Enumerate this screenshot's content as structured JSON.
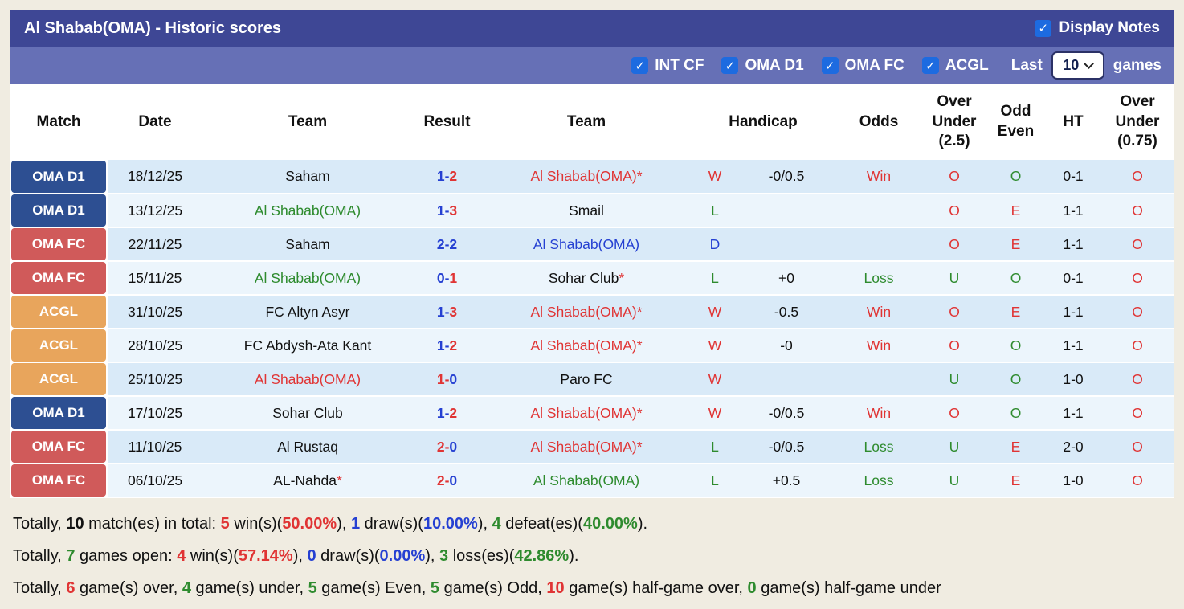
{
  "header": {
    "title": "Al Shabab(OMA) - Historic scores",
    "display_notes_label": "Display Notes"
  },
  "icons": {
    "check": "✓"
  },
  "filter_bar": {
    "leagues": [
      "INT CF",
      "OMA D1",
      "OMA FC",
      "ACGL"
    ],
    "last_label": "Last",
    "selected_count": "10",
    "games_label": "games"
  },
  "table": {
    "headers": [
      "Match",
      "Date",
      "Team",
      "Result",
      "Team",
      "Handicap",
      "Odds",
      "Over Under (2.5)",
      "Odd Even",
      "HT",
      "Over Under (0.75)"
    ],
    "rows": [
      {
        "league": "OMA D1",
        "date": "18/12/25",
        "home": {
          "name": "Saham",
          "color": "black",
          "star": false
        },
        "score": {
          "h": "1",
          "hc": "blue",
          "a": "2",
          "ac": "red"
        },
        "away": {
          "name": "Al Shabab(OMA)",
          "color": "red",
          "star": true
        },
        "wld": {
          "t": "W",
          "c": "red"
        },
        "handicap": "-0/0.5",
        "odds": {
          "t": "Win",
          "c": "red"
        },
        "ou25": {
          "t": "O",
          "c": "red"
        },
        "oe": {
          "t": "O",
          "c": "green"
        },
        "ht": "0-1",
        "ou075": {
          "t": "O",
          "c": "red"
        }
      },
      {
        "league": "OMA D1",
        "date": "13/12/25",
        "home": {
          "name": "Al Shabab(OMA)",
          "color": "green",
          "star": false
        },
        "score": {
          "h": "1",
          "hc": "blue",
          "a": "3",
          "ac": "red"
        },
        "away": {
          "name": "Smail",
          "color": "black",
          "star": false
        },
        "wld": {
          "t": "L",
          "c": "green"
        },
        "handicap": "",
        "odds": null,
        "ou25": {
          "t": "O",
          "c": "red"
        },
        "oe": {
          "t": "E",
          "c": "red"
        },
        "ht": "1-1",
        "ou075": {
          "t": "O",
          "c": "red"
        }
      },
      {
        "league": "OMA FC",
        "date": "22/11/25",
        "home": {
          "name": "Saham",
          "color": "black",
          "star": false
        },
        "score": {
          "h": "2",
          "hc": "blue",
          "a": "2",
          "ac": "blue"
        },
        "away": {
          "name": "Al Shabab(OMA)",
          "color": "blue",
          "star": false
        },
        "wld": {
          "t": "D",
          "c": "blue"
        },
        "handicap": "",
        "odds": null,
        "ou25": {
          "t": "O",
          "c": "red"
        },
        "oe": {
          "t": "E",
          "c": "red"
        },
        "ht": "1-1",
        "ou075": {
          "t": "O",
          "c": "red"
        }
      },
      {
        "league": "OMA FC",
        "date": "15/11/25",
        "home": {
          "name": "Al Shabab(OMA)",
          "color": "green",
          "star": false
        },
        "score": {
          "h": "0",
          "hc": "blue",
          "a": "1",
          "ac": "red"
        },
        "away": {
          "name": "Sohar Club",
          "color": "black",
          "star": true
        },
        "wld": {
          "t": "L",
          "c": "green"
        },
        "handicap": "+0",
        "odds": {
          "t": "Loss",
          "c": "green"
        },
        "ou25": {
          "t": "U",
          "c": "green"
        },
        "oe": {
          "t": "O",
          "c": "green"
        },
        "ht": "0-1",
        "ou075": {
          "t": "O",
          "c": "red"
        }
      },
      {
        "league": "ACGL",
        "date": "31/10/25",
        "home": {
          "name": "FC Altyn Asyr",
          "color": "black",
          "star": false
        },
        "score": {
          "h": "1",
          "hc": "blue",
          "a": "3",
          "ac": "red"
        },
        "away": {
          "name": "Al Shabab(OMA)",
          "color": "red",
          "star": true
        },
        "wld": {
          "t": "W",
          "c": "red"
        },
        "handicap": "-0.5",
        "odds": {
          "t": "Win",
          "c": "red"
        },
        "ou25": {
          "t": "O",
          "c": "red"
        },
        "oe": {
          "t": "E",
          "c": "red"
        },
        "ht": "1-1",
        "ou075": {
          "t": "O",
          "c": "red"
        }
      },
      {
        "league": "ACGL",
        "date": "28/10/25",
        "home": {
          "name": "FC Abdysh-Ata Kant",
          "color": "black",
          "star": false
        },
        "score": {
          "h": "1",
          "hc": "blue",
          "a": "2",
          "ac": "red"
        },
        "away": {
          "name": "Al Shabab(OMA)",
          "color": "red",
          "star": true
        },
        "wld": {
          "t": "W",
          "c": "red"
        },
        "handicap": "-0",
        "odds": {
          "t": "Win",
          "c": "red"
        },
        "ou25": {
          "t": "O",
          "c": "red"
        },
        "oe": {
          "t": "O",
          "c": "green"
        },
        "ht": "1-1",
        "ou075": {
          "t": "O",
          "c": "red"
        }
      },
      {
        "league": "ACGL",
        "date": "25/10/25",
        "home": {
          "name": "Al Shabab(OMA)",
          "color": "red",
          "star": false
        },
        "score": {
          "h": "1",
          "hc": "red",
          "a": "0",
          "ac": "blue"
        },
        "away": {
          "name": "Paro FC",
          "color": "black",
          "star": false
        },
        "wld": {
          "t": "W",
          "c": "red"
        },
        "handicap": "",
        "odds": null,
        "ou25": {
          "t": "U",
          "c": "green"
        },
        "oe": {
          "t": "O",
          "c": "green"
        },
        "ht": "1-0",
        "ou075": {
          "t": "O",
          "c": "red"
        }
      },
      {
        "league": "OMA D1",
        "date": "17/10/25",
        "home": {
          "name": "Sohar Club",
          "color": "black",
          "star": false
        },
        "score": {
          "h": "1",
          "hc": "blue",
          "a": "2",
          "ac": "red"
        },
        "away": {
          "name": "Al Shabab(OMA)",
          "color": "red",
          "star": true
        },
        "wld": {
          "t": "W",
          "c": "red"
        },
        "handicap": "-0/0.5",
        "odds": {
          "t": "Win",
          "c": "red"
        },
        "ou25": {
          "t": "O",
          "c": "red"
        },
        "oe": {
          "t": "O",
          "c": "green"
        },
        "ht": "1-1",
        "ou075": {
          "t": "O",
          "c": "red"
        }
      },
      {
        "league": "OMA FC",
        "date": "11/10/25",
        "home": {
          "name": "Al Rustaq",
          "color": "black",
          "star": false
        },
        "score": {
          "h": "2",
          "hc": "red",
          "a": "0",
          "ac": "blue"
        },
        "away": {
          "name": "Al Shabab(OMA)",
          "color": "red",
          "star": true
        },
        "wld": {
          "t": "L",
          "c": "green"
        },
        "handicap": "-0/0.5",
        "odds": {
          "t": "Loss",
          "c": "green"
        },
        "ou25": {
          "t": "U",
          "c": "green"
        },
        "oe": {
          "t": "E",
          "c": "red"
        },
        "ht": "2-0",
        "ou075": {
          "t": "O",
          "c": "red"
        }
      },
      {
        "league": "OMA FC",
        "date": "06/10/25",
        "home": {
          "name": "AL-Nahda",
          "color": "black",
          "star": true
        },
        "score": {
          "h": "2",
          "hc": "red",
          "a": "0",
          "ac": "blue"
        },
        "away": {
          "name": "Al Shabab(OMA)",
          "color": "green",
          "star": false
        },
        "wld": {
          "t": "L",
          "c": "green"
        },
        "handicap": "+0.5",
        "odds": {
          "t": "Loss",
          "c": "green"
        },
        "ou25": {
          "t": "U",
          "c": "green"
        },
        "oe": {
          "t": "E",
          "c": "red"
        },
        "ht": "1-0",
        "ou075": {
          "t": "O",
          "c": "red"
        }
      }
    ]
  },
  "summary": [
    [
      {
        "t": "Totally, ",
        "c": "black"
      },
      {
        "t": "10",
        "c": "black",
        "b": true
      },
      {
        "t": " match(es) in total: ",
        "c": "black"
      },
      {
        "t": "5",
        "c": "red",
        "b": true
      },
      {
        "t": " win(s)(",
        "c": "black"
      },
      {
        "t": "50.00%",
        "c": "red",
        "b": true
      },
      {
        "t": "), ",
        "c": "black"
      },
      {
        "t": "1",
        "c": "blue",
        "b": true
      },
      {
        "t": " draw(s)(",
        "c": "black"
      },
      {
        "t": "10.00%",
        "c": "blue",
        "b": true
      },
      {
        "t": "), ",
        "c": "black"
      },
      {
        "t": "4",
        "c": "green",
        "b": true
      },
      {
        "t": " defeat(es)(",
        "c": "black"
      },
      {
        "t": "40.00%",
        "c": "green",
        "b": true
      },
      {
        "t": ").",
        "c": "black"
      }
    ],
    [
      {
        "t": "Totally, ",
        "c": "black"
      },
      {
        "t": "7",
        "c": "green",
        "b": true
      },
      {
        "t": " games open: ",
        "c": "black"
      },
      {
        "t": "4",
        "c": "red",
        "b": true
      },
      {
        "t": " win(s)(",
        "c": "black"
      },
      {
        "t": "57.14%",
        "c": "red",
        "b": true
      },
      {
        "t": "), ",
        "c": "black"
      },
      {
        "t": "0",
        "c": "blue",
        "b": true
      },
      {
        "t": " draw(s)(",
        "c": "black"
      },
      {
        "t": "0.00%",
        "c": "blue",
        "b": true
      },
      {
        "t": "), ",
        "c": "black"
      },
      {
        "t": "3",
        "c": "green",
        "b": true
      },
      {
        "t": " loss(es)(",
        "c": "black"
      },
      {
        "t": "42.86%",
        "c": "green",
        "b": true
      },
      {
        "t": ").",
        "c": "black"
      }
    ],
    [
      {
        "t": "Totally, ",
        "c": "black"
      },
      {
        "t": "6",
        "c": "red",
        "b": true
      },
      {
        "t": " game(s) over, ",
        "c": "black"
      },
      {
        "t": "4",
        "c": "green",
        "b": true
      },
      {
        "t": " game(s) under, ",
        "c": "black"
      },
      {
        "t": "5",
        "c": "green",
        "b": true
      },
      {
        "t": " game(s) Even, ",
        "c": "black"
      },
      {
        "t": "5",
        "c": "green",
        "b": true
      },
      {
        "t": " game(s) Odd, ",
        "c": "black"
      },
      {
        "t": "10",
        "c": "red",
        "b": true
      },
      {
        "t": " game(s) half-game over, ",
        "c": "black"
      },
      {
        "t": "0",
        "c": "green",
        "b": true
      },
      {
        "t": " game(s) half-game under",
        "c": "black"
      }
    ]
  ],
  "colors": {
    "page_bg": "#f0ece1",
    "topbar_bg": "#3e4795",
    "filterbar_bg": "#6670b6",
    "checkbox_bg": "#1d6be0",
    "row_odd_bg": "#d9eaf8",
    "row_even_bg": "#ecf5fc",
    "text": {
      "black": "#111111",
      "red": "#e03434",
      "green": "#2e8b2e",
      "blue": "#2540d2"
    },
    "league": {
      "OMA D1": "#2d4f92",
      "OMA FC": "#d05a5a",
      "ACGL": "#e8a55c"
    }
  }
}
